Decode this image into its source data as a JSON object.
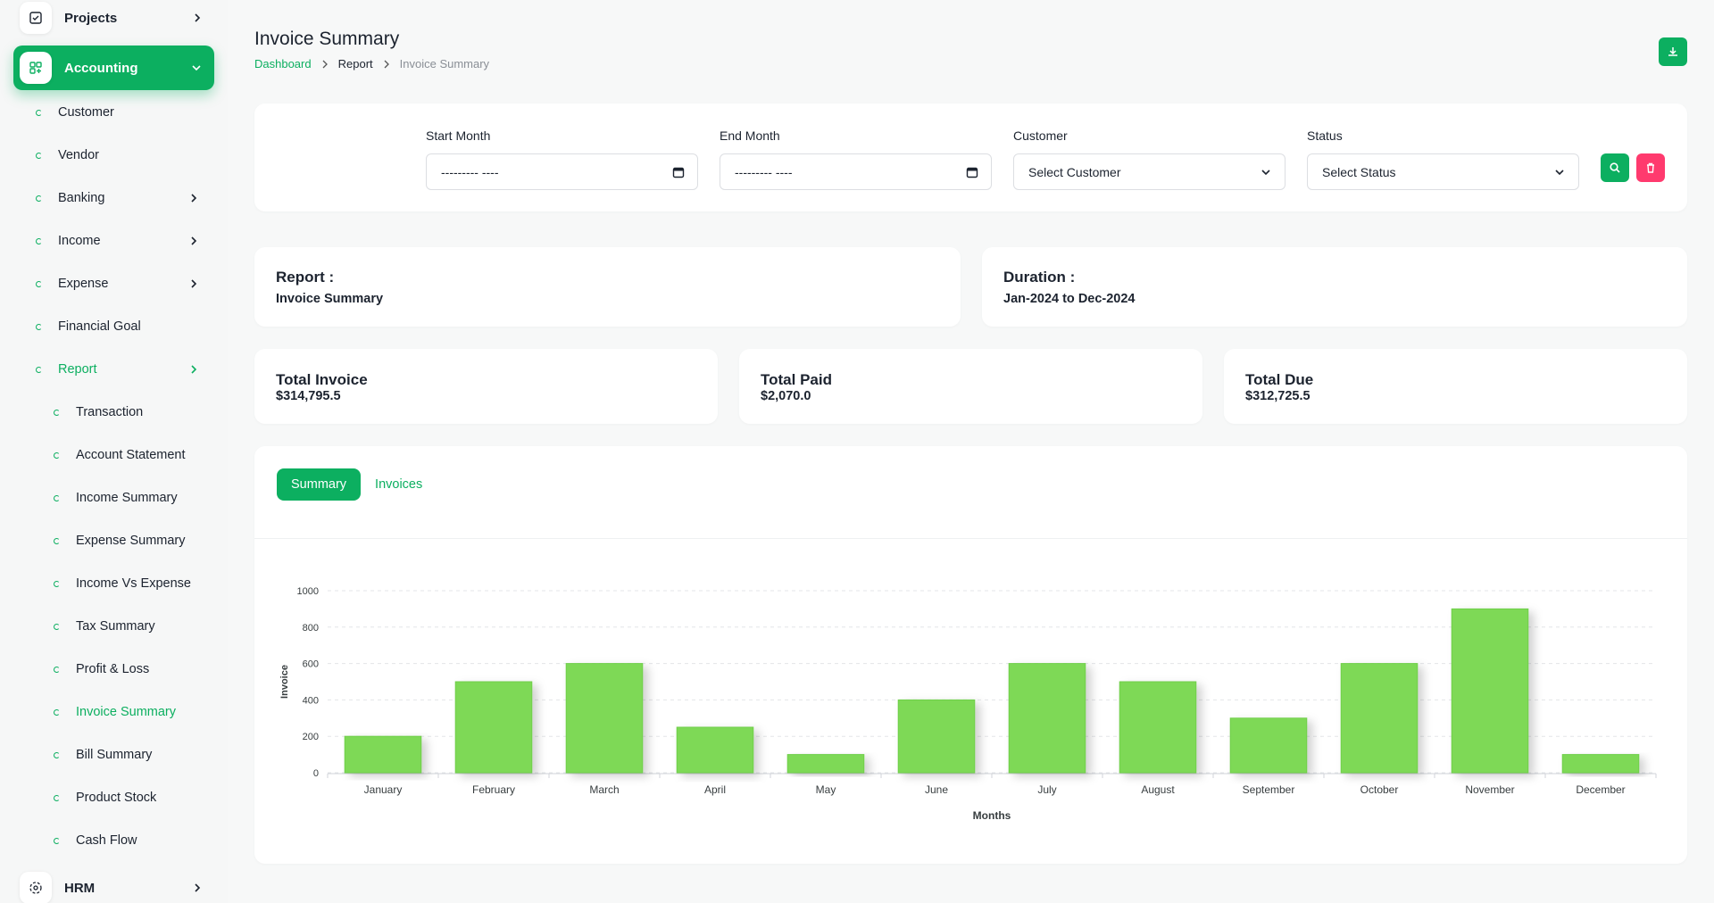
{
  "sidebar": {
    "projects": "Projects",
    "accounting": "Accounting",
    "hrm": "HRM",
    "items": [
      {
        "label": "Customer",
        "level": 1
      },
      {
        "label": "Vendor",
        "level": 1
      },
      {
        "label": "Banking",
        "level": 1
      },
      {
        "label": "Income",
        "level": 1
      },
      {
        "label": "Expense",
        "level": 1
      },
      {
        "label": "Financial Goal",
        "level": 1
      },
      {
        "label": "Report",
        "level": 1
      },
      {
        "label": "Transaction",
        "level": 2
      },
      {
        "label": "Account Statement",
        "level": 2
      },
      {
        "label": "Income Summary",
        "level": 2
      },
      {
        "label": "Expense Summary",
        "level": 2
      },
      {
        "label": "Income Vs Expense",
        "level": 2
      },
      {
        "label": "Tax Summary",
        "level": 2
      },
      {
        "label": "Profit & Loss",
        "level": 2
      },
      {
        "label": "Invoice Summary",
        "level": 2
      },
      {
        "label": "Bill Summary",
        "level": 2
      },
      {
        "label": "Product Stock",
        "level": 2
      },
      {
        "label": "Cash Flow",
        "level": 2
      }
    ]
  },
  "header": {
    "title": "Invoice Summary",
    "breadcrumb": [
      "Dashboard",
      "Report",
      "Invoice Summary"
    ]
  },
  "filters": {
    "start_month_label": "Start Month",
    "start_month_value": "--------- ----",
    "end_month_label": "End Month",
    "end_month_value": "--------- ----",
    "customer_label": "Customer",
    "customer_value": "Select Customer",
    "status_label": "Status",
    "status_value": "Select Status"
  },
  "report": {
    "title": "Report :",
    "value": "Invoice Summary"
  },
  "duration": {
    "title": "Duration :",
    "value": "Jan-2024 to Dec-2024"
  },
  "stats": {
    "total_invoice_label": "Total Invoice",
    "total_invoice_value": "$314,795.5",
    "total_paid_label": "Total Paid",
    "total_paid_value": "$2,070.0",
    "total_due_label": "Total Due",
    "total_due_value": "$312,725.5"
  },
  "tabs": {
    "summary": "Summary",
    "invoices": "Invoices"
  },
  "colors": {
    "accent": "#0caf60",
    "danger": "#ff3a6e",
    "bar": "#7ed957"
  },
  "chart_data": {
    "type": "bar",
    "categories": [
      "January",
      "February",
      "March",
      "April",
      "May",
      "June",
      "July",
      "August",
      "September",
      "October",
      "November",
      "December"
    ],
    "values": [
      200,
      500,
      600,
      250,
      100,
      400,
      600,
      500,
      300,
      600,
      900,
      100
    ],
    "xlabel": "Months",
    "ylabel": "Invoice",
    "ylim": [
      0,
      1000
    ],
    "yticks": [
      0,
      200,
      400,
      600,
      800,
      1000
    ],
    "grid": true
  }
}
